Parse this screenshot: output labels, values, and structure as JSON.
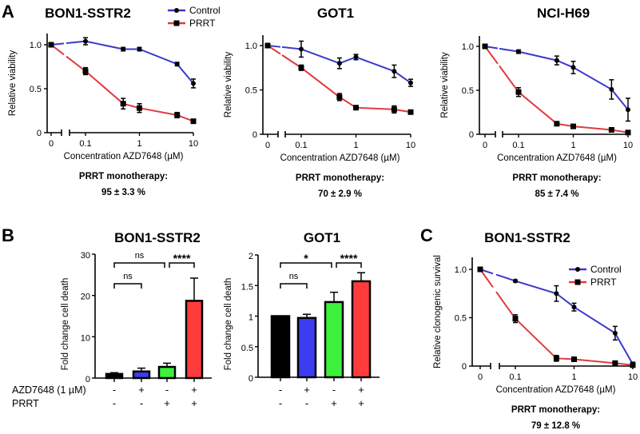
{
  "panel_labels": {
    "a": "A",
    "b": "B",
    "c": "C"
  },
  "chart_data": [
    {
      "id": "A1",
      "type": "line",
      "title": "BON1-SSTR2",
      "xlabel": "Concentration AZD7648 (µM)",
      "ylabel": "Relative viability",
      "x": [
        0,
        0.1,
        0.5,
        1,
        5,
        10
      ],
      "xscale": "log with broken axis at 0",
      "xticks": [
        "0",
        "0.1",
        "1",
        "10"
      ],
      "yticks": [
        "0",
        "0.5",
        "1.0"
      ],
      "ylim": [
        0,
        1.1
      ],
      "legend": "top-right",
      "series": [
        {
          "name": "Control",
          "color": "#3a3acb",
          "marker": "circle",
          "values": [
            1.0,
            1.04,
            0.95,
            0.95,
            0.78,
            0.56
          ],
          "errors": [
            0,
            0.04,
            0.02,
            0.02,
            0.02,
            0.05
          ]
        },
        {
          "name": "PRRT",
          "color": "#e03a3e",
          "marker": "square",
          "values": [
            1.0,
            0.7,
            0.33,
            0.28,
            0.2,
            0.13
          ],
          "errors": [
            0,
            0.04,
            0.06,
            0.05,
            0.03,
            0.02
          ]
        }
      ],
      "note_title": "PRRT monotherapy:",
      "note_value": "95 ± 3.3 %"
    },
    {
      "id": "A2",
      "type": "line",
      "title": "GOT1",
      "xlabel": "Concentration AZD7648 (µM)",
      "ylabel": "Relative viability",
      "x": [
        0,
        0.1,
        0.5,
        1,
        5,
        10
      ],
      "xscale": "log with broken axis at 0",
      "xticks": [
        "0",
        "0.1",
        "1",
        "10"
      ],
      "yticks": [
        "0",
        "0.5",
        "1.0"
      ],
      "ylim": [
        0,
        1.1
      ],
      "series": [
        {
          "color": "#3a3acb",
          "marker": "circle",
          "values": [
            1.0,
            0.96,
            0.8,
            0.87,
            0.71,
            0.58
          ],
          "errors": [
            0,
            0.09,
            0.06,
            0.03,
            0.07,
            0.04
          ]
        },
        {
          "color": "#e03a3e",
          "marker": "square",
          "values": [
            1.0,
            0.75,
            0.42,
            0.3,
            0.28,
            0.25
          ],
          "errors": [
            0,
            0.03,
            0.04,
            0.02,
            0.04,
            0.02
          ]
        }
      ],
      "note_title": "PRRT monotherapy:",
      "note_value": "70 ± 2.9 %"
    },
    {
      "id": "A3",
      "type": "line",
      "title": "NCI-H69",
      "xlabel": "Concentration AZD7648 (µM)",
      "ylabel": "Relative viability",
      "x": [
        0,
        0.1,
        0.5,
        1,
        5,
        10
      ],
      "xscale": "log with broken axis at 0",
      "xticks": [
        "0",
        "0.1",
        "1",
        "10"
      ],
      "yticks": [
        "0",
        "0.5",
        "1.0"
      ],
      "ylim": [
        0,
        1.1
      ],
      "series": [
        {
          "color": "#3a3acb",
          "marker": "circle",
          "values": [
            1.0,
            0.94,
            0.84,
            0.76,
            0.51,
            0.28
          ],
          "errors": [
            0,
            0.02,
            0.05,
            0.07,
            0.11,
            0.13
          ]
        },
        {
          "color": "#e03a3e",
          "marker": "square",
          "values": [
            1.0,
            0.48,
            0.12,
            0.09,
            0.05,
            0.02
          ],
          "errors": [
            0,
            0.05,
            0.01,
            0.01,
            0.01,
            0.01
          ]
        }
      ],
      "note_title": "PRRT monotherapy:",
      "note_value": "85 ± 7.4 %"
    },
    {
      "id": "B1",
      "type": "bar",
      "title": "BON1-SSTR2",
      "ylabel": "Fold change cell death",
      "yticks": [
        "0",
        "10",
        "20",
        "30"
      ],
      "ylim": [
        0,
        30
      ],
      "values": [
        1.0,
        1.6,
        2.7,
        18.7
      ],
      "errors": [
        0.3,
        0.8,
        0.9,
        5.5
      ],
      "colors": [
        "#000000",
        "#3c3cf0",
        "#3cf03c",
        "#ff3c3c"
      ],
      "row_labels": [
        "AZD7648 (1 µM)",
        "PRRT"
      ],
      "row_signs": [
        [
          "-",
          "+",
          "-",
          "+"
        ],
        [
          "-",
          "-",
          "+",
          "+"
        ]
      ],
      "comparisons": [
        {
          "from": 1,
          "to": 2,
          "label": "ns"
        },
        {
          "from": 1,
          "to": 3,
          "label": "ns"
        },
        {
          "from": 3,
          "to": 4,
          "label": "****"
        }
      ]
    },
    {
      "id": "B2",
      "type": "bar",
      "title": "GOT1",
      "ylabel": "Fold change cell death",
      "yticks": [
        "0",
        "0.5",
        "1",
        "1.5",
        "2"
      ],
      "ylim": [
        0,
        2
      ],
      "values": [
        1.0,
        0.97,
        1.23,
        1.57
      ],
      "errors": [
        0,
        0.06,
        0.16,
        0.14
      ],
      "colors": [
        "#000000",
        "#3c3cf0",
        "#3cf03c",
        "#ff3c3c"
      ],
      "row_signs": [
        [
          "-",
          "+",
          "-",
          "+"
        ],
        [
          "-",
          "-",
          "+",
          "+"
        ]
      ],
      "comparisons": [
        {
          "from": 1,
          "to": 2,
          "label": "ns"
        },
        {
          "from": 1,
          "to": 3,
          "label": "*"
        },
        {
          "from": 3,
          "to": 4,
          "label": "****"
        }
      ]
    },
    {
      "id": "C",
      "type": "line",
      "title": "BON1-SSTR2",
      "xlabel": "Concentration AZD7648 (µM)",
      "ylabel": "Relative clonogenic survival",
      "x": [
        0,
        0.1,
        0.5,
        1,
        5,
        10
      ],
      "xscale": "log with broken axis at 0",
      "xticks": [
        "0",
        "0.1",
        "1",
        "10"
      ],
      "yticks": [
        "0",
        "0.5",
        "1.0"
      ],
      "ylim": [
        0,
        1.05
      ],
      "legend": "top-right",
      "series": [
        {
          "name": "Control",
          "color": "#3a3acb",
          "marker": "circle",
          "values": [
            1.0,
            0.88,
            0.75,
            0.61,
            0.34,
            0.02
          ],
          "errors": [
            0,
            0.01,
            0.08,
            0.04,
            0.07,
            0.02
          ]
        },
        {
          "name": "PRRT",
          "color": "#e03a3e",
          "marker": "square",
          "values": [
            1.0,
            0.49,
            0.08,
            0.07,
            0.03,
            0.01
          ],
          "errors": [
            0,
            0.04,
            0.03,
            0.01,
            0.01,
            0.01
          ]
        }
      ],
      "note_title": "PRRT monotherapy:",
      "note_value": "79 ± 12.8 %"
    }
  ]
}
